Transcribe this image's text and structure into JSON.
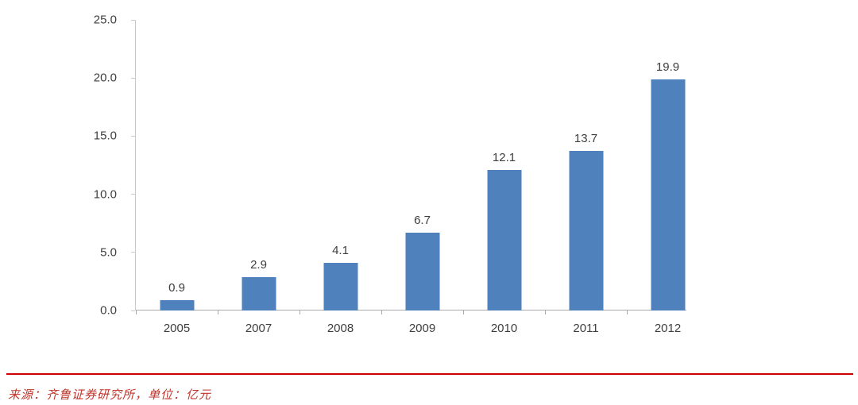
{
  "chart_data": {
    "type": "bar",
    "categories": [
      "2005",
      "2007",
      "2008",
      "2009",
      "2010",
      "2011",
      "2012"
    ],
    "values": [
      0.9,
      2.9,
      4.1,
      6.7,
      12.1,
      13.7,
      19.9
    ],
    "data_labels": [
      "0.9",
      "2.9",
      "4.1",
      "6.7",
      "12.1",
      "13.7",
      "19.9"
    ],
    "title": "",
    "xlabel": "",
    "ylabel": "",
    "ylim": [
      0,
      25
    ],
    "ytick_labels": [
      "0.0",
      "5.0",
      "10.0",
      "15.0",
      "20.0",
      "25.0"
    ],
    "grid": "off",
    "legend": "none",
    "bar_color": "#4f81bd"
  },
  "footer": {
    "source_text": "来源：齐鲁证券研究所，单位：亿元",
    "divider_color": "#cc0000",
    "text_color": "#bf352b"
  }
}
